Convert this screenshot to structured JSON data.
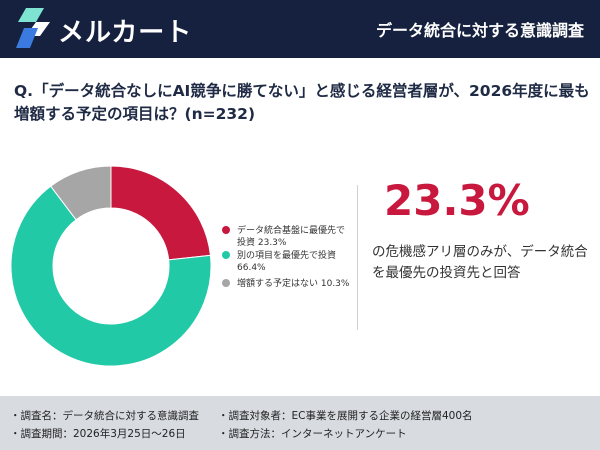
{
  "header": {
    "brand": "メルカート",
    "title": "データ統合に対する意識調査"
  },
  "question": "Q.「データ統合なしにAI競争に勝てない」と感じる経営者層が、2026年度に最も増額する予定の項目は？(n=232)",
  "chart_data": {
    "type": "pie",
    "donut": true,
    "categories": [
      "データ統合基盤に最優先で投資",
      "別の項目を最優先で投資",
      "増額する予定はない"
    ],
    "values": [
      23.3,
      66.4,
      10.3
    ],
    "unit": "%",
    "colors": [
      "#c8183e",
      "#22c9a7",
      "#a6a6a6"
    ],
    "legend": [
      {
        "lines": [
          "データ統合基盤に最優先で",
          "投資 23.3%"
        ]
      },
      {
        "lines": [
          "別の項目を最優先で投資",
          "66.4%"
        ]
      },
      {
        "lines": [
          "増額する予定はない 10.3%"
        ]
      }
    ],
    "legend_position": "right"
  },
  "highlight": {
    "value": "23.3%",
    "text": "の危機感アリ層のみが、データ統合を最優先の投資先と回答"
  },
  "footer": {
    "survey_name": "・調査名：データ統合に対する意識調査",
    "survey_period": "・調査期間：2026年3月25日〜26日",
    "survey_target": "・調査対象者：EC事業を展開する企業の経営層400名",
    "survey_method": "・調査方法：インターネットアンケート"
  }
}
